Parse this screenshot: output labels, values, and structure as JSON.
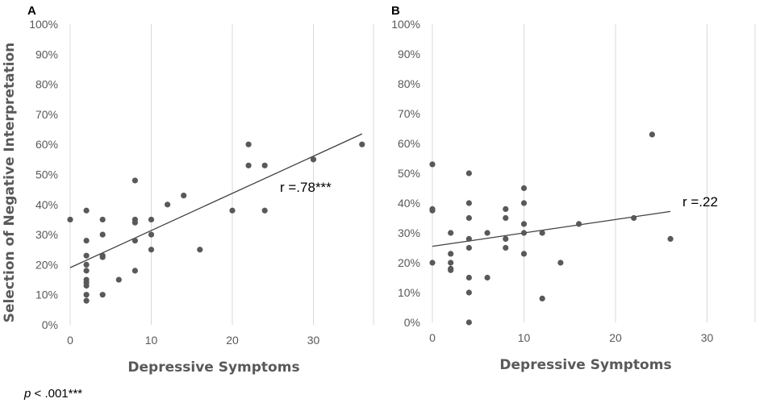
{
  "chart_data": [
    {
      "panel_label": "A",
      "type": "scatter",
      "xlabel": "Depressive Symptoms",
      "ylabel": "Selection of Negative Interpretation",
      "xlim": [
        0,
        36
      ],
      "ylim": [
        0,
        100
      ],
      "x_ticks": [
        0,
        10,
        20,
        30
      ],
      "y_ticks": [
        "0%",
        "10%",
        "20%",
        "30%",
        "40%",
        "50%",
        "60%",
        "70%",
        "80%",
        "90%",
        "100%"
      ],
      "grid": "vertical",
      "points": [
        {
          "x": 0,
          "y": 35
        },
        {
          "x": 2,
          "y": 38
        },
        {
          "x": 2,
          "y": 28
        },
        {
          "x": 2,
          "y": 23
        },
        {
          "x": 2,
          "y": 20
        },
        {
          "x": 2,
          "y": 18
        },
        {
          "x": 2,
          "y": 15
        },
        {
          "x": 2,
          "y": 14
        },
        {
          "x": 2,
          "y": 13
        },
        {
          "x": 2,
          "y": 10
        },
        {
          "x": 2,
          "y": 8
        },
        {
          "x": 4,
          "y": 35
        },
        {
          "x": 4,
          "y": 30
        },
        {
          "x": 4,
          "y": 23
        },
        {
          "x": 4,
          "y": 22.5
        },
        {
          "x": 4,
          "y": 10
        },
        {
          "x": 6,
          "y": 15
        },
        {
          "x": 8,
          "y": 48
        },
        {
          "x": 8,
          "y": 35
        },
        {
          "x": 8,
          "y": 34
        },
        {
          "x": 8,
          "y": 28
        },
        {
          "x": 8,
          "y": 18
        },
        {
          "x": 10,
          "y": 35
        },
        {
          "x": 10,
          "y": 30
        },
        {
          "x": 10,
          "y": 25
        },
        {
          "x": 12,
          "y": 40
        },
        {
          "x": 14,
          "y": 43
        },
        {
          "x": 16,
          "y": 25
        },
        {
          "x": 20,
          "y": 38
        },
        {
          "x": 22,
          "y": 60
        },
        {
          "x": 22,
          "y": 53
        },
        {
          "x": 24,
          "y": 53
        },
        {
          "x": 24,
          "y": 38
        },
        {
          "x": 30,
          "y": 55
        },
        {
          "x": 36,
          "y": 60
        }
      ],
      "trendline": {
        "x": [
          0,
          36
        ],
        "y": [
          19,
          63.5
        ]
      },
      "annotation": "r =.78***"
    },
    {
      "panel_label": "B",
      "type": "scatter",
      "xlabel": "Depressive Symptoms",
      "ylabel": "",
      "xlim": [
        0,
        36
      ],
      "ylim": [
        0,
        100
      ],
      "x_ticks": [
        0,
        10,
        20,
        30
      ],
      "y_ticks": [
        "0%",
        "10%",
        "20%",
        "30%",
        "40%",
        "50%",
        "60%",
        "70%",
        "80%",
        "90%",
        "100%"
      ],
      "grid": "vertical",
      "points": [
        {
          "x": 0,
          "y": 53
        },
        {
          "x": 0,
          "y": 38
        },
        {
          "x": 0,
          "y": 37.5
        },
        {
          "x": 0,
          "y": 20
        },
        {
          "x": 2,
          "y": 30
        },
        {
          "x": 2,
          "y": 23
        },
        {
          "x": 2,
          "y": 20
        },
        {
          "x": 2,
          "y": 18
        },
        {
          "x": 2,
          "y": 17.5
        },
        {
          "x": 4,
          "y": 50
        },
        {
          "x": 4,
          "y": 40
        },
        {
          "x": 4,
          "y": 35
        },
        {
          "x": 4,
          "y": 28
        },
        {
          "x": 4,
          "y": 25
        },
        {
          "x": 4,
          "y": 15
        },
        {
          "x": 4,
          "y": 10
        },
        {
          "x": 4,
          "y": 0
        },
        {
          "x": 6,
          "y": 30
        },
        {
          "x": 6,
          "y": 15
        },
        {
          "x": 8,
          "y": 38
        },
        {
          "x": 8,
          "y": 35
        },
        {
          "x": 8,
          "y": 28
        },
        {
          "x": 8,
          "y": 25
        },
        {
          "x": 10,
          "y": 45
        },
        {
          "x": 10,
          "y": 40
        },
        {
          "x": 10,
          "y": 33
        },
        {
          "x": 10,
          "y": 30
        },
        {
          "x": 10,
          "y": 23
        },
        {
          "x": 12,
          "y": 30
        },
        {
          "x": 12,
          "y": 8
        },
        {
          "x": 14,
          "y": 20
        },
        {
          "x": 16,
          "y": 33
        },
        {
          "x": 22,
          "y": 35
        },
        {
          "x": 24,
          "y": 63
        },
        {
          "x": 26,
          "y": 28
        }
      ],
      "trendline": {
        "x": [
          0,
          26
        ],
        "y": [
          25.5,
          37.2
        ]
      },
      "annotation": "r =.22"
    }
  ],
  "footnote": {
    "p_symbol": "p",
    "text": " < .001***"
  }
}
